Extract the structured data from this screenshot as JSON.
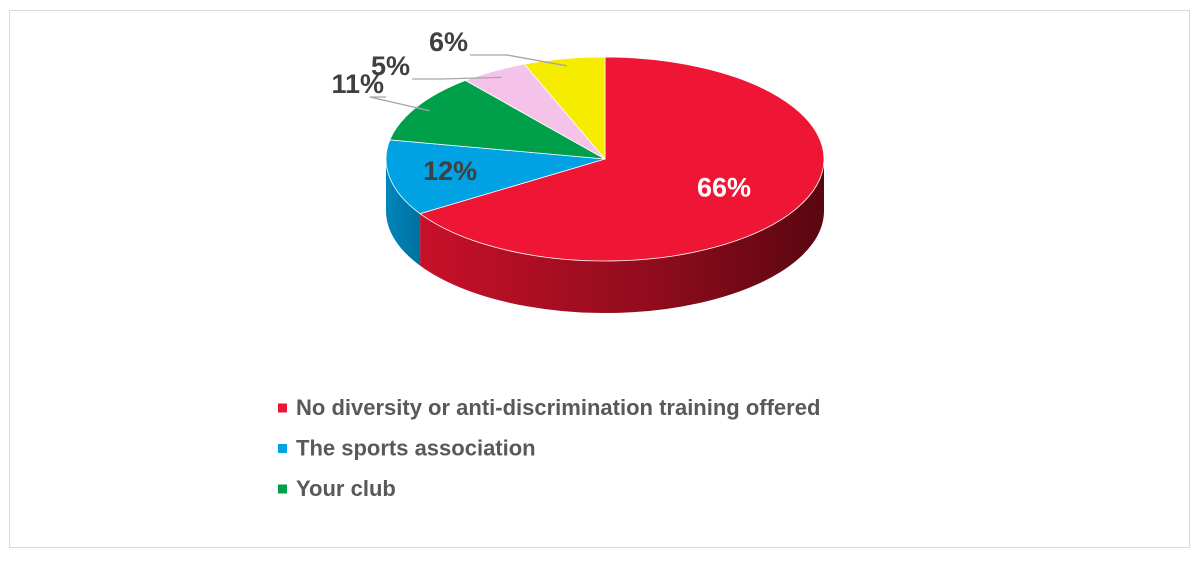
{
  "chart_data": {
    "type": "pie",
    "categories": [
      "No diversity or anti-discrimination training offered",
      "The sports association",
      "Your club",
      null,
      null
    ],
    "values": [
      66,
      12,
      11,
      5,
      6
    ],
    "value_labels": [
      "66%",
      "12%",
      "11%",
      "5%",
      "6%"
    ],
    "colors": [
      "#ee1535",
      "#00a2e3",
      "#00a04a",
      "#f5c3ea",
      "#f5ec00"
    ],
    "legend": "bottom"
  }
}
